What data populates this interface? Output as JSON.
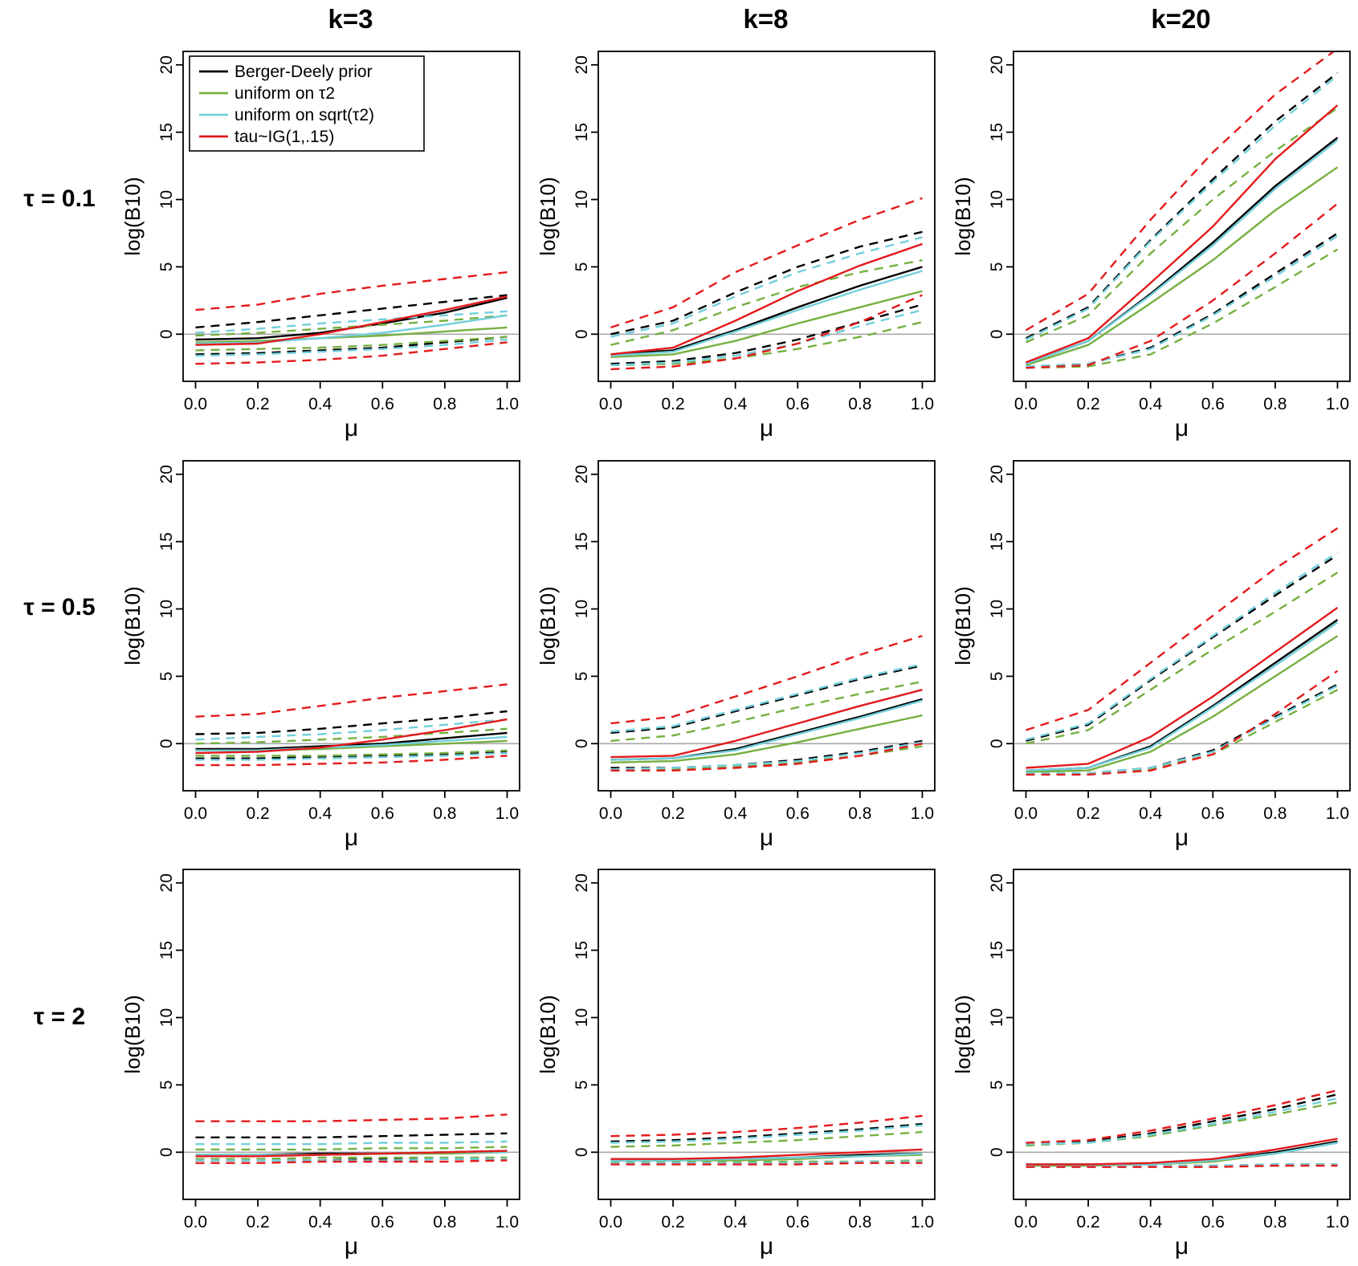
{
  "chart_data": {
    "type": "line",
    "xlabel": "μ",
    "ylabel": "log(B10)",
    "x": [
      0.0,
      0.2,
      0.4,
      0.6,
      0.8,
      1.0
    ],
    "xticks": [
      0.0,
      0.2,
      0.4,
      0.6,
      0.8,
      1.0
    ],
    "yticks": [
      0,
      5,
      10,
      15,
      20
    ],
    "xlim": [
      -0.04,
      1.04
    ],
    "ylim": [
      -3.5,
      21
    ],
    "grid": false,
    "zero_line_color": "#a8a8a8",
    "col_titles": [
      "k=3",
      "k=8",
      "k=20"
    ],
    "row_labels": [
      "τ = 0.1",
      "τ = 0.5",
      "τ = 2"
    ],
    "legend_position": "top-left of first panel",
    "legend": [
      {
        "label": "Berger-Deely prior",
        "color": "#000000",
        "key": "berger-deely"
      },
      {
        "label": "uniform on τ2",
        "color": "#76b041",
        "key": "uniform-tau2"
      },
      {
        "label": "uniform on sqrt(τ2)",
        "color": "#72cfdb",
        "key": "uniform-sqrt-tau2"
      },
      {
        "label": "tau~IG(1,.15)",
        "color": "#e31a1c",
        "key": "tau-ig"
      }
    ],
    "line_styles": {
      "median": "solid",
      "lower": "dashed",
      "upper": "dashed"
    },
    "panels": [
      {
        "row": "τ = 0.1",
        "col": "k=3",
        "series": [
          {
            "median": [
              -0.4,
              -0.3,
              0.1,
              0.8,
              1.6,
              2.7
            ],
            "lower": [
              -1.5,
              -1.4,
              -1.2,
              -1.0,
              -0.6,
              -0.2
            ],
            "upper": [
              0.5,
              0.9,
              1.4,
              1.9,
              2.4,
              2.9
            ]
          },
          {
            "median": [
              -0.6,
              -0.5,
              -0.3,
              -0.1,
              0.2,
              0.5
            ],
            "lower": [
              -1.2,
              -1.1,
              -1.0,
              -0.8,
              -0.5,
              -0.2
            ],
            "upper": [
              -0.1,
              0.1,
              0.4,
              0.7,
              1.0,
              1.4
            ]
          },
          {
            "median": [
              -0.7,
              -0.6,
              -0.3,
              0.1,
              0.7,
              1.4
            ],
            "lower": [
              -1.6,
              -1.5,
              -1.3,
              -1.1,
              -0.8,
              -0.4
            ],
            "upper": [
              0.1,
              0.4,
              0.8,
              1.1,
              1.4,
              1.7
            ]
          },
          {
            "median": [
              -0.8,
              -0.7,
              0.0,
              0.9,
              1.8,
              2.8
            ],
            "lower": [
              -2.2,
              -2.1,
              -1.9,
              -1.6,
              -1.1,
              -0.6
            ],
            "upper": [
              1.8,
              2.2,
              3.0,
              3.6,
              4.1,
              4.6
            ]
          }
        ]
      },
      {
        "row": "τ = 0.1",
        "col": "k=8",
        "series": [
          {
            "median": [
              -1.5,
              -1.2,
              0.3,
              2.0,
              3.6,
              5.0
            ],
            "lower": [
              -2.2,
              -2.0,
              -1.4,
              -0.4,
              0.9,
              2.2
            ],
            "upper": [
              0.0,
              1.0,
              3.1,
              5.0,
              6.5,
              7.6
            ]
          },
          {
            "median": [
              -1.7,
              -1.5,
              -0.5,
              0.8,
              2.0,
              3.2
            ],
            "lower": [
              -2.3,
              -2.2,
              -1.8,
              -1.1,
              -0.2,
              0.9
            ],
            "upper": [
              -0.8,
              0.3,
              2.0,
              3.5,
              4.6,
              5.5
            ]
          },
          {
            "median": [
              -1.6,
              -1.3,
              0.2,
              1.8,
              3.3,
              4.7
            ],
            "lower": [
              -2.3,
              -2.1,
              -1.6,
              -0.7,
              0.6,
              1.8
            ],
            "upper": [
              -0.2,
              0.8,
              2.8,
              4.6,
              6.0,
              7.2
            ]
          },
          {
            "median": [
              -1.5,
              -1.0,
              1.0,
              3.2,
              5.1,
              6.7
            ],
            "lower": [
              -2.6,
              -2.4,
              -1.8,
              -0.7,
              0.9,
              2.9
            ],
            "upper": [
              0.5,
              2.0,
              4.6,
              6.6,
              8.5,
              10.1
            ]
          }
        ]
      },
      {
        "row": "τ = 0.1",
        "col": "k=20",
        "series": [
          {
            "median": [
              -2.2,
              -0.5,
              3.0,
              6.8,
              11.0,
              14.6
            ],
            "lower": [
              -2.4,
              -2.2,
              -1.0,
              1.5,
              4.5,
              7.5
            ],
            "upper": [
              -0.3,
              2.0,
              7.0,
              11.5,
              15.8,
              19.4
            ]
          },
          {
            "median": [
              -2.3,
              -0.8,
              2.3,
              5.5,
              9.2,
              12.4
            ],
            "lower": [
              -2.5,
              -2.4,
              -1.5,
              0.8,
              3.5,
              6.3
            ],
            "upper": [
              -0.6,
              1.4,
              6.0,
              10.0,
              13.6,
              16.8
            ]
          },
          {
            "median": [
              -2.2,
              -0.5,
              2.9,
              6.6,
              10.8,
              14.4
            ],
            "lower": [
              -2.4,
              -2.2,
              -1.1,
              1.4,
              4.3,
              7.3
            ],
            "upper": [
              -0.4,
              1.9,
              6.9,
              11.3,
              15.5,
              19.2
            ]
          },
          {
            "median": [
              -2.1,
              -0.3,
              3.8,
              8.0,
              13.0,
              17.0
            ],
            "lower": [
              -2.5,
              -2.3,
              -0.5,
              2.5,
              6.0,
              9.7
            ],
            "upper": [
              0.3,
              3.0,
              8.5,
              13.5,
              17.8,
              21.2
            ]
          }
        ]
      },
      {
        "row": "τ = 0.5",
        "col": "k=3",
        "series": [
          {
            "median": [
              -0.4,
              -0.4,
              -0.2,
              0.0,
              0.4,
              0.8
            ],
            "lower": [
              -1.1,
              -1.1,
              -1.0,
              -0.9,
              -0.8,
              -0.6
            ],
            "upper": [
              0.7,
              0.8,
              1.1,
              1.5,
              1.9,
              2.4
            ]
          },
          {
            "median": [
              -0.5,
              -0.5,
              -0.4,
              -0.2,
              0.0,
              0.2
            ],
            "lower": [
              -0.9,
              -0.9,
              -0.9,
              -0.8,
              -0.7,
              -0.5
            ],
            "upper": [
              0.0,
              0.1,
              0.3,
              0.5,
              0.8,
              1.1
            ]
          },
          {
            "median": [
              -0.5,
              -0.5,
              -0.3,
              -0.1,
              0.2,
              0.5
            ],
            "lower": [
              -1.2,
              -1.2,
              -1.1,
              -1.0,
              -0.9,
              -0.7
            ],
            "upper": [
              0.3,
              0.5,
              0.7,
              1.0,
              1.4,
              1.8
            ]
          },
          {
            "median": [
              -0.7,
              -0.6,
              -0.3,
              0.3,
              1.0,
              1.8
            ],
            "lower": [
              -1.6,
              -1.6,
              -1.5,
              -1.4,
              -1.2,
              -0.9
            ],
            "upper": [
              2.0,
              2.2,
              2.8,
              3.4,
              3.9,
              4.4
            ]
          }
        ]
      },
      {
        "row": "τ = 0.5",
        "col": "k=8",
        "series": [
          {
            "median": [
              -1.2,
              -1.1,
              -0.4,
              0.8,
              2.0,
              3.3
            ],
            "lower": [
              -1.8,
              -1.8,
              -1.6,
              -1.2,
              -0.6,
              0.2
            ],
            "upper": [
              0.8,
              1.2,
              2.4,
              3.6,
              4.8,
              5.8
            ]
          },
          {
            "median": [
              -1.4,
              -1.3,
              -0.8,
              0.1,
              1.1,
              2.1
            ],
            "lower": [
              -1.9,
              -1.9,
              -1.7,
              -1.4,
              -0.9,
              -0.2
            ],
            "upper": [
              0.2,
              0.6,
              1.6,
              2.7,
              3.7,
              4.6
            ]
          },
          {
            "median": [
              -1.2,
              -1.1,
              -0.5,
              0.7,
              1.9,
              3.2
            ],
            "lower": [
              -1.9,
              -1.8,
              -1.6,
              -1.3,
              -0.7,
              0.1
            ],
            "upper": [
              0.9,
              1.3,
              2.5,
              3.7,
              4.9,
              5.9
            ]
          },
          {
            "median": [
              -1.0,
              -0.9,
              0.2,
              1.5,
              2.8,
              4.0
            ],
            "lower": [
              -2.0,
              -2.0,
              -1.8,
              -1.5,
              -0.9,
              0.0
            ],
            "upper": [
              1.5,
              2.0,
              3.5,
              5.0,
              6.6,
              8.0
            ]
          }
        ]
      },
      {
        "row": "τ = 0.5",
        "col": "k=20",
        "series": [
          {
            "median": [
              -2.0,
              -1.8,
              -0.2,
              2.8,
              6.0,
              9.2
            ],
            "lower": [
              -2.2,
              -2.2,
              -1.8,
              -0.5,
              2.0,
              4.4
            ],
            "upper": [
              0.2,
              1.4,
              4.7,
              7.9,
              11.0,
              14.0
            ]
          },
          {
            "median": [
              -2.1,
              -2.0,
              -0.6,
              2.0,
              5.0,
              8.0
            ],
            "lower": [
              -2.3,
              -2.2,
              -1.9,
              -0.8,
              1.6,
              4.0
            ],
            "upper": [
              0.0,
              1.0,
              4.0,
              7.0,
              9.8,
              12.7
            ]
          },
          {
            "median": [
              -2.0,
              -1.8,
              -0.3,
              2.7,
              5.8,
              9.0
            ],
            "lower": [
              -2.2,
              -2.2,
              -1.8,
              -0.6,
              1.9,
              4.3
            ],
            "upper": [
              0.3,
              1.5,
              4.8,
              8.0,
              11.2,
              14.2
            ]
          },
          {
            "median": [
              -1.8,
              -1.5,
              0.5,
              3.5,
              6.8,
              10.1
            ],
            "lower": [
              -2.3,
              -2.3,
              -2.0,
              -0.8,
              2.2,
              5.4
            ],
            "upper": [
              1.0,
              2.5,
              6.0,
              9.5,
              13.0,
              16.0
            ]
          }
        ]
      },
      {
        "row": "τ = 2",
        "col": "k=3",
        "series": [
          {
            "median": [
              -0.2,
              -0.2,
              -0.1,
              -0.1,
              0.0,
              0.1
            ],
            "lower": [
              -0.6,
              -0.6,
              -0.6,
              -0.5,
              -0.5,
              -0.5
            ],
            "upper": [
              1.1,
              1.1,
              1.1,
              1.2,
              1.3,
              1.4
            ]
          },
          {
            "median": [
              -0.2,
              -0.2,
              -0.2,
              -0.1,
              -0.1,
              0.0
            ],
            "lower": [
              -0.5,
              -0.5,
              -0.4,
              -0.4,
              -0.4,
              -0.4
            ],
            "upper": [
              0.2,
              0.2,
              0.2,
              0.3,
              0.3,
              0.4
            ]
          },
          {
            "median": [
              -0.2,
              -0.2,
              -0.2,
              -0.1,
              0.0,
              0.0
            ],
            "lower": [
              -0.6,
              -0.6,
              -0.6,
              -0.6,
              -0.5,
              -0.5
            ],
            "upper": [
              0.6,
              0.6,
              0.6,
              0.7,
              0.7,
              0.8
            ]
          },
          {
            "median": [
              -0.3,
              -0.3,
              -0.2,
              -0.1,
              0.0,
              0.1
            ],
            "lower": [
              -0.8,
              -0.8,
              -0.7,
              -0.7,
              -0.7,
              -0.6
            ],
            "upper": [
              2.3,
              2.3,
              2.3,
              2.4,
              2.5,
              2.8
            ]
          }
        ]
      },
      {
        "row": "τ = 2",
        "col": "k=8",
        "series": [
          {
            "median": [
              -0.6,
              -0.6,
              -0.5,
              -0.4,
              -0.2,
              -0.1
            ],
            "lower": [
              -0.8,
              -0.8,
              -0.8,
              -0.8,
              -0.7,
              -0.7
            ],
            "upper": [
              0.8,
              0.9,
              1.1,
              1.4,
              1.7,
              2.1
            ]
          },
          {
            "median": [
              -0.6,
              -0.6,
              -0.6,
              -0.5,
              -0.3,
              -0.2
            ],
            "lower": [
              -0.7,
              -0.7,
              -0.7,
              -0.7,
              -0.7,
              -0.6
            ],
            "upper": [
              0.4,
              0.5,
              0.7,
              0.9,
              1.2,
              1.5
            ]
          },
          {
            "median": [
              -0.6,
              -0.6,
              -0.5,
              -0.4,
              -0.3,
              -0.1
            ],
            "lower": [
              -0.8,
              -0.8,
              -0.8,
              -0.8,
              -0.7,
              -0.7
            ],
            "upper": [
              0.7,
              0.8,
              1.0,
              1.3,
              1.6,
              2.0
            ]
          },
          {
            "median": [
              -0.5,
              -0.5,
              -0.4,
              -0.2,
              0.0,
              0.2
            ],
            "lower": [
              -0.9,
              -0.9,
              -0.9,
              -0.9,
              -0.8,
              -0.8
            ],
            "upper": [
              1.2,
              1.3,
              1.5,
              1.8,
              2.2,
              2.7
            ]
          }
        ]
      },
      {
        "row": "τ = 2",
        "col": "k=20",
        "series": [
          {
            "median": [
              -0.9,
              -0.9,
              -0.9,
              -0.6,
              0.0,
              0.8
            ],
            "lower": [
              -1.0,
              -1.0,
              -1.0,
              -1.0,
              -0.9,
              -0.9
            ],
            "upper": [
              0.6,
              0.8,
              1.4,
              2.3,
              3.2,
              4.3
            ]
          },
          {
            "median": [
              -1.0,
              -1.0,
              -0.9,
              -0.7,
              -0.1,
              0.7
            ],
            "lower": [
              -1.0,
              -1.0,
              -1.0,
              -1.0,
              -1.0,
              -0.9
            ],
            "upper": [
              0.5,
              0.7,
              1.2,
              2.0,
              2.8,
              3.7
            ]
          },
          {
            "median": [
              -0.9,
              -0.9,
              -0.9,
              -0.6,
              -0.1,
              0.7
            ],
            "lower": [
              -1.0,
              -1.0,
              -1.0,
              -1.0,
              -0.9,
              -0.9
            ],
            "upper": [
              0.6,
              0.7,
              1.3,
              2.1,
              3.0,
              4.0
            ]
          },
          {
            "median": [
              -0.9,
              -0.9,
              -0.8,
              -0.5,
              0.2,
              1.0
            ],
            "lower": [
              -1.1,
              -1.1,
              -1.1,
              -1.1,
              -1.0,
              -1.0
            ],
            "upper": [
              0.7,
              0.9,
              1.6,
              2.5,
              3.5,
              4.6
            ]
          }
        ]
      }
    ]
  }
}
